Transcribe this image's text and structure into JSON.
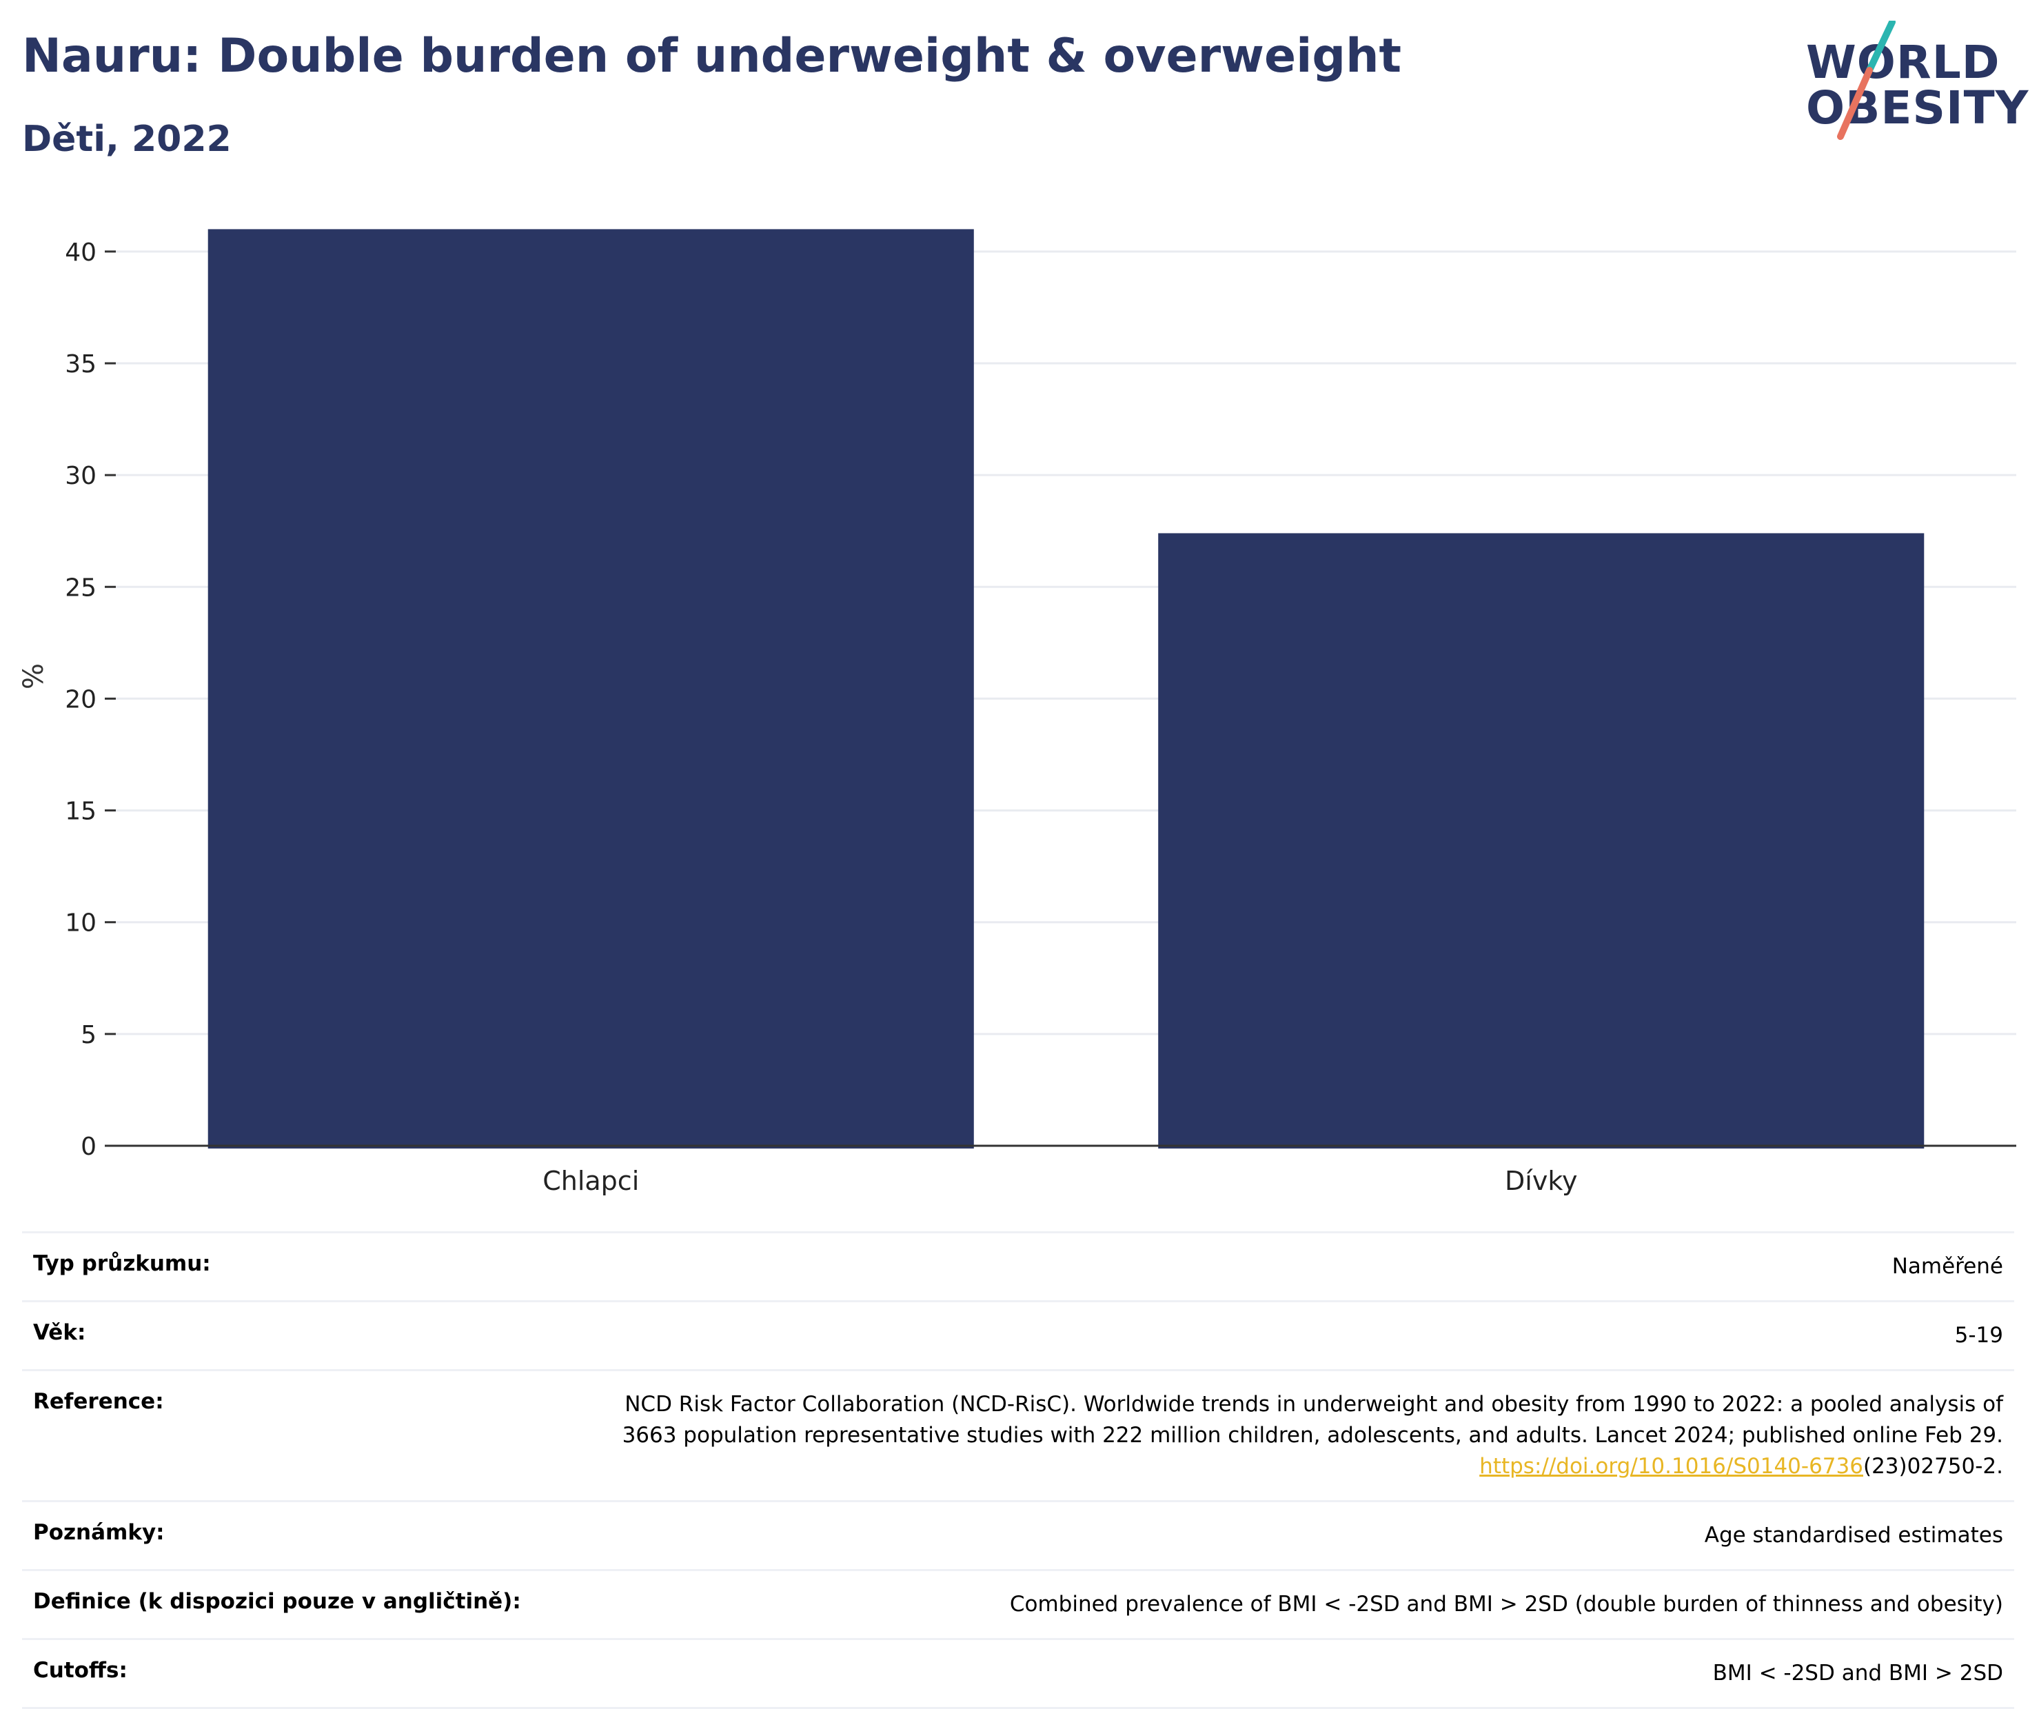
{
  "header": {
    "title": "Nauru: Double burden of underweight & overweight",
    "subtitle": "Děti, 2022"
  },
  "logo": {
    "line1": "WORLD",
    "line2": "OBESITY",
    "accent_teal": "#2bb5b0",
    "accent_coral": "#e8735f"
  },
  "colors": {
    "bar": "#2a3663",
    "grid": "#e9ebf0",
    "axis": "#333333",
    "link": "#e8b624"
  },
  "chart_data": {
    "type": "bar",
    "categories": [
      "Chlapci",
      "Dívky"
    ],
    "values": [
      41.0,
      27.4
    ],
    "ylabel": "%",
    "ylim": [
      0,
      42
    ],
    "yticks": [
      0,
      5,
      10,
      15,
      20,
      25,
      30,
      35,
      40
    ],
    "grid": true,
    "legend": "none"
  },
  "info": {
    "rows": [
      {
        "label": "Typ průzkumu:",
        "value": "Naměřené"
      },
      {
        "label": "Věk:",
        "value": "5-19"
      },
      {
        "label": "Reference:",
        "value_lines": [
          "NCD Risk Factor Collaboration (NCD-RisC). Worldwide trends in underweight and obesity from 1990 to 2022: a pooled analysis of",
          "3663 population representative studies with 222 million children, adolescents, and adults. Lancet 2024; published online Feb 29."
        ],
        "link_text": "https://doi.org/10.1016/S0140-6736",
        "link_suffix": "(23)02750-2."
      },
      {
        "label": "Poznámky:",
        "value": "Age standardised estimates"
      },
      {
        "label": "Definice (k dispozici pouze v angličtině):",
        "value": "Combined prevalence of BMI < -2SD and BMI > 2SD (double burden of thinness and obesity)"
      },
      {
        "label": "Cutoffs:",
        "value": "BMI < -2SD and BMI > 2SD"
      }
    ]
  }
}
